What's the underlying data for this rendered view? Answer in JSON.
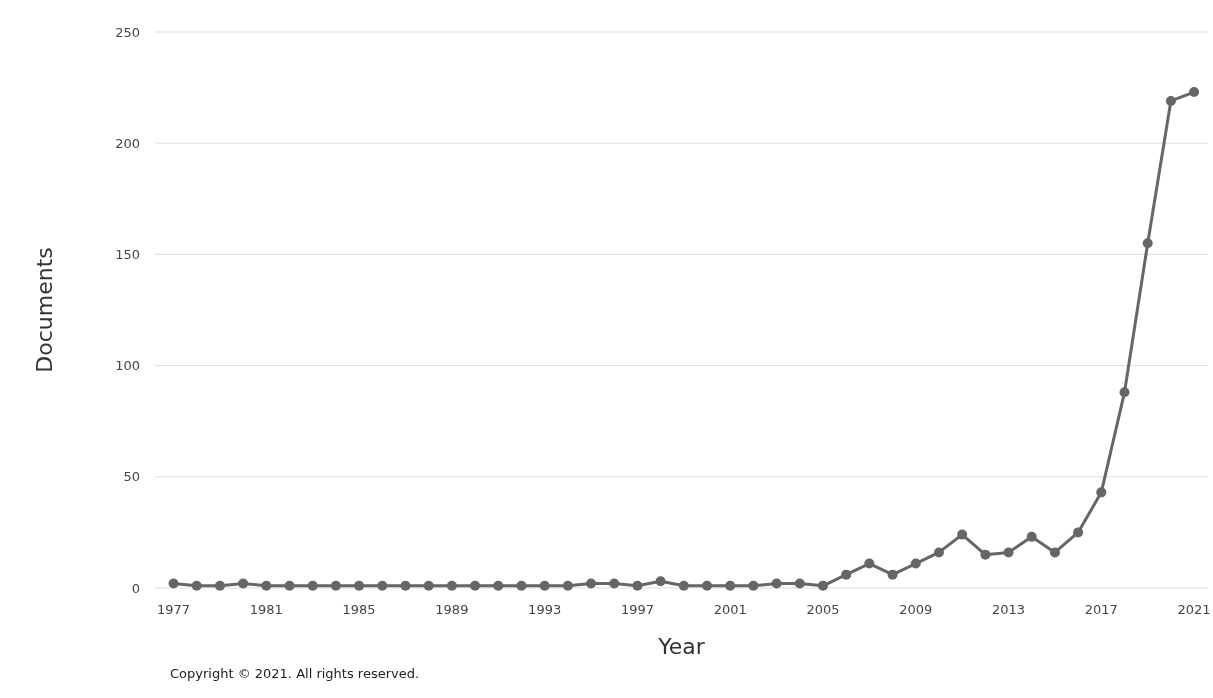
{
  "chart_data": {
    "type": "line",
    "xlabel": "Year",
    "ylabel": "Documents",
    "annotations": [
      "Copyright © 2021. All rights reserved."
    ],
    "x": [
      1977,
      1978,
      1979,
      1980,
      1981,
      1982,
      1983,
      1984,
      1985,
      1986,
      1987,
      1988,
      1989,
      1990,
      1991,
      1992,
      1993,
      1994,
      1995,
      1996,
      1997,
      1998,
      1999,
      2000,
      2001,
      2002,
      2003,
      2004,
      2005,
      2006,
      2007,
      2008,
      2009,
      2010,
      2011,
      2012,
      2013,
      2014,
      2015,
      2016,
      2017,
      2018,
      2019,
      2020,
      2021
    ],
    "series": [
      {
        "color": "#666666",
        "values": [
          2,
          1,
          1,
          2,
          1,
          1,
          1,
          1,
          1,
          1,
          1,
          1,
          1,
          1,
          1,
          1,
          1,
          1,
          2,
          2,
          1,
          3,
          1,
          1,
          1,
          1,
          2,
          2,
          1,
          6,
          11,
          6,
          11,
          16,
          24,
          15,
          16,
          23,
          16,
          25,
          43,
          88,
          155,
          219,
          223
        ]
      }
    ],
    "xlim": [
      1976.2,
      2021.6
    ],
    "xticks": [
      1977,
      1981,
      1985,
      1989,
      1993,
      1997,
      2001,
      2005,
      2009,
      2013,
      2017,
      2021
    ],
    "ylim": [
      0,
      250
    ],
    "yticks": [
      0,
      50,
      100,
      150,
      200,
      250
    ],
    "grid": "y",
    "marker": "circle",
    "line_style": "solid"
  }
}
